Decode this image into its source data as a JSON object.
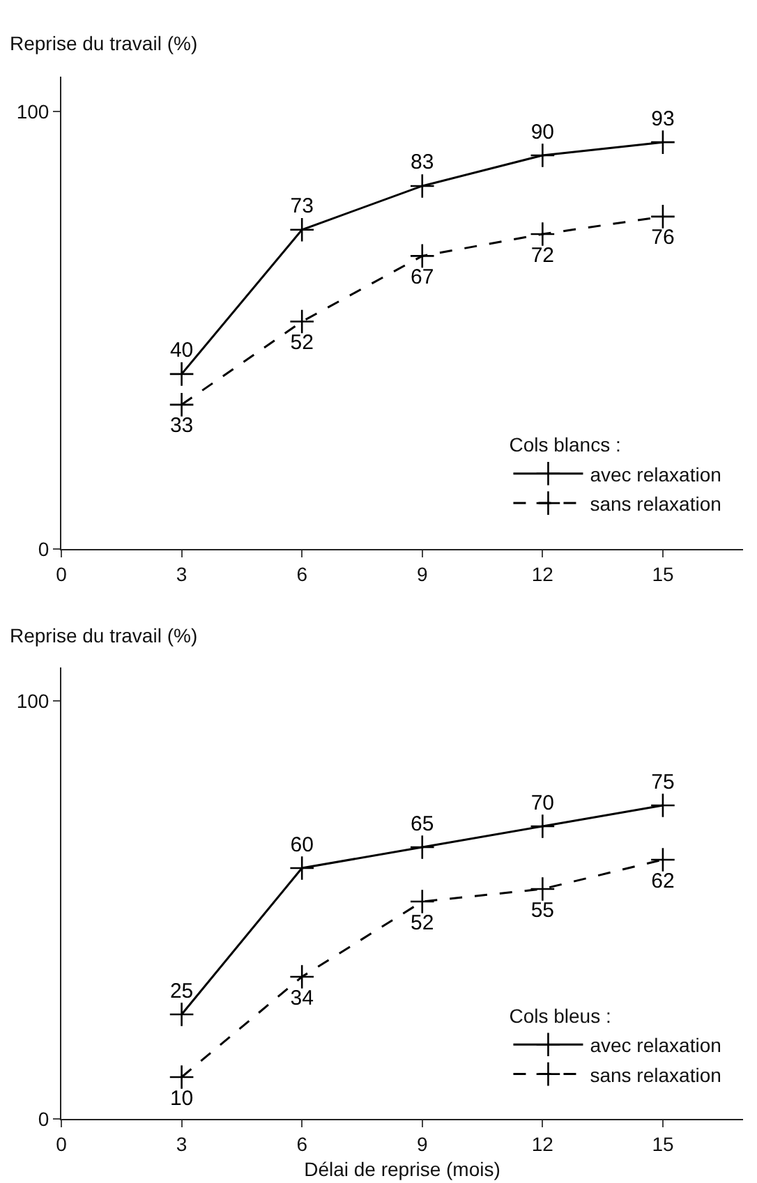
{
  "chart_data": [
    {
      "type": "line",
      "ylabel": "Reprise du travail (%)",
      "legend_title": "Cols blancs :",
      "x": [
        3,
        6,
        9,
        12,
        15
      ],
      "xlim": [
        0,
        17
      ],
      "xticks": [
        {
          "value": 0,
          "label": "0"
        },
        3,
        6,
        9,
        12,
        15
      ],
      "ylim": [
        0,
        108
      ],
      "yticks": [
        {
          "value": 0,
          "label": "0"
        },
        100
      ],
      "marker": "cross",
      "data_labels": true,
      "grid": false,
      "legend": "bottom right",
      "series": [
        {
          "name": "avec relaxation",
          "color": "#000000",
          "line_style": "solid",
          "values": [
            40,
            73,
            83,
            90,
            93
          ]
        },
        {
          "name": "sans relaxation",
          "color": "#000000",
          "line_style": "dashed",
          "values": [
            33,
            52,
            67,
            72,
            76
          ]
        }
      ]
    },
    {
      "type": "line",
      "ylabel": "Reprise du travail (%)",
      "xlabel": "Délai de reprise (mois)",
      "legend_title": "Cols bleus :",
      "x": [
        3,
        6,
        9,
        12,
        15
      ],
      "xlim": [
        0,
        17
      ],
      "xticks": [
        {
          "value": 0,
          "label": "0"
        },
        3,
        6,
        9,
        12,
        15
      ],
      "ylim": [
        0,
        108
      ],
      "yticks": [
        {
          "value": 0,
          "label": "0"
        },
        100
      ],
      "marker": "cross",
      "data_labels": true,
      "grid": false,
      "legend": "bottom right",
      "series": [
        {
          "name": "avec relaxation",
          "color": "#000000",
          "line_style": "solid",
          "values": [
            25,
            60,
            65,
            70,
            75
          ]
        },
        {
          "name": "sans relaxation",
          "color": "#000000",
          "line_style": "dashed",
          "values": [
            10,
            34,
            52,
            55,
            62
          ]
        }
      ]
    }
  ]
}
